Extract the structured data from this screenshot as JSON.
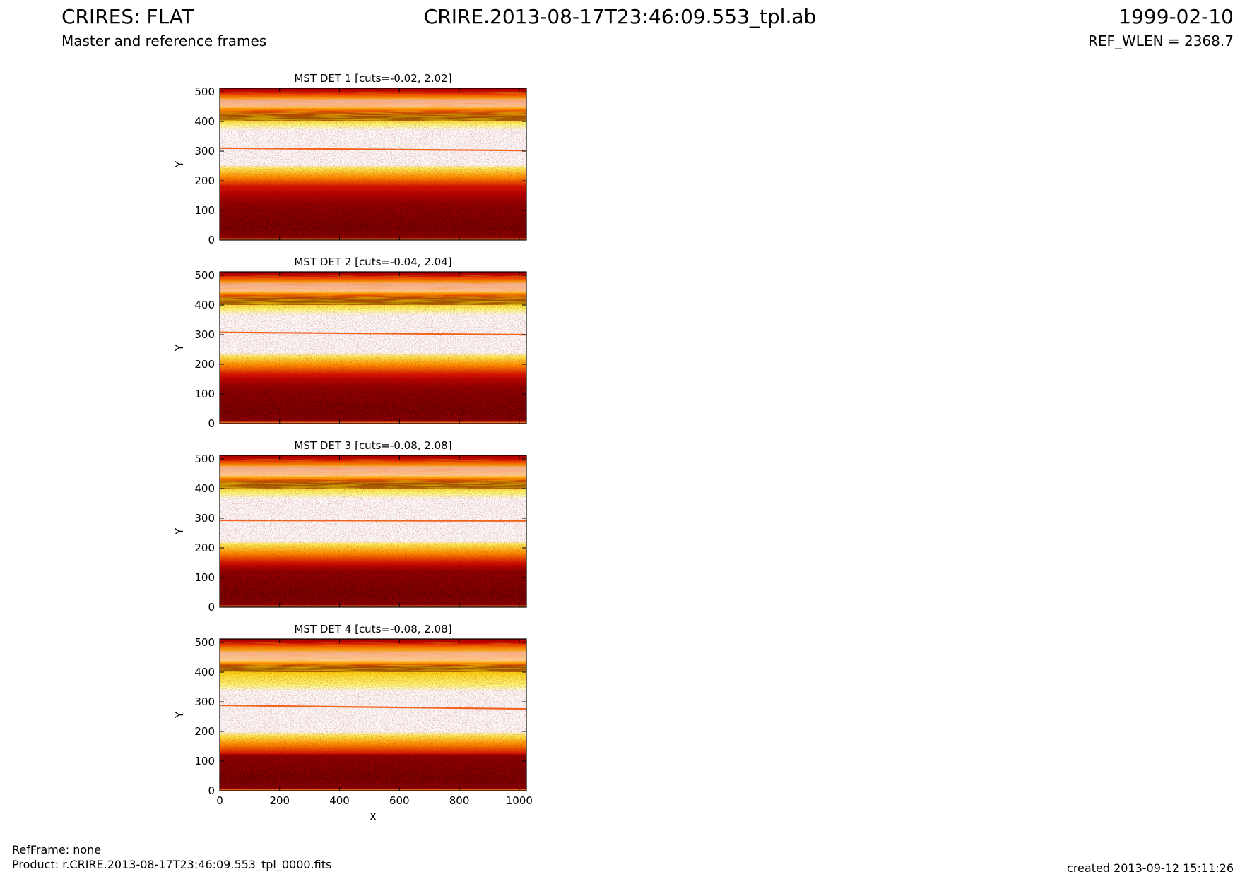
{
  "header": {
    "title": "CRIRES: FLAT",
    "filename": "CRIRE.2013-08-17T23:46:09.553_tpl.ab",
    "date": "1999-02-10",
    "subtitle": "Master and reference frames",
    "ref_wlen": "REF_WLEN = 2368.7"
  },
  "footer": {
    "ref_frame": "RefFrame: none",
    "product": "Product: r.CRIRE.2013-08-17T23:46:09.553_tpl_0000.fits",
    "created": "created 2013-09-12 15:11:26"
  },
  "chart_data": [
    {
      "type": "heatmap",
      "title": "MST DET 1 [cuts=-0.02, 2.02]",
      "xlabel": "",
      "ylabel": "Y",
      "xlim": [
        0,
        1024
      ],
      "ylim": [
        0,
        512
      ],
      "xticks": [],
      "yticks": [
        0,
        100,
        200,
        300,
        400,
        500
      ],
      "colormap": "hot",
      "cuts": [
        -0.02,
        2.02
      ]
    },
    {
      "type": "heatmap",
      "title": "MST DET 2 [cuts=-0.04, 2.04]",
      "xlabel": "",
      "ylabel": "Y",
      "xlim": [
        0,
        1024
      ],
      "ylim": [
        0,
        512
      ],
      "xticks": [],
      "yticks": [
        0,
        100,
        200,
        300,
        400,
        500
      ],
      "colormap": "hot",
      "cuts": [
        -0.04,
        2.04
      ]
    },
    {
      "type": "heatmap",
      "title": "MST DET 3 [cuts=-0.08, 2.08]",
      "xlabel": "",
      "ylabel": "Y",
      "xlim": [
        0,
        1024
      ],
      "ylim": [
        0,
        512
      ],
      "xticks": [],
      "yticks": [
        0,
        100,
        200,
        300,
        400,
        500
      ],
      "colormap": "hot",
      "cuts": [
        -0.08,
        2.08
      ]
    },
    {
      "type": "heatmap",
      "title": "MST DET 4 [cuts=-0.08, 2.08]",
      "xlabel": "X",
      "ylabel": "Y",
      "xlim": [
        0,
        1024
      ],
      "ylim": [
        0,
        512
      ],
      "xticks": [
        0,
        200,
        400,
        600,
        800,
        1000
      ],
      "yticks": [
        0,
        100,
        200,
        300,
        400,
        500
      ],
      "colormap": "hot",
      "cuts": [
        -0.08,
        2.08
      ]
    }
  ]
}
